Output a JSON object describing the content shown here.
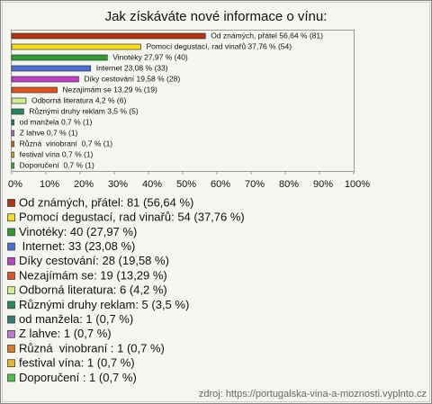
{
  "chart_data": {
    "type": "bar",
    "orientation": "horizontal",
    "title": "Jak získáváte nové informace o vínu:",
    "values": [
      56.64,
      37.76,
      27.97,
      23.08,
      19.58,
      13.29,
      4.2,
      3.5,
      0.7,
      0.7,
      0.7,
      0.7,
      0.7
    ],
    "value_labels": [
      "Od známých, přátel 56,64 % (81)",
      "Pomocí degustací, rad vinařů 37,76 % (54)",
      "Vinotéky 27,97 % (40)",
      "Internet 23,08 % (33)",
      "Díky cestování 19,58 % (28)",
      "Nezajímám se 13,29 % (19)",
      "Odborná literatura 4,2 % (6)",
      "Různými druhy reklam 3,5 % (5)",
      "od manžela 0,7 % (1)",
      "Z lahve 0,7 % (1)",
      "Různá  vinobraní  0,7 % (1)",
      "festival vína 0,7 % (1)",
      "Doporučení  0,7 % (1)"
    ],
    "legend": [
      "Od známých, přátel: 81 (56,64 %)",
      "Pomocí degustací, rad vinařů: 54 (37,76 %)",
      "Vinotéky: 40 (27,97 %)",
      " Internet: 33 (23,08 %)",
      "Díky cestování: 28 (19,58 %)",
      "Nezajímám se: 19 (13,29 %)",
      "Odborná literatura: 6 (4,2 %)",
      "Různými druhy reklam: 5 (3,5 %)",
      "od manžela: 1 (0,7 %)",
      "Z lahve: 1 (0,7 %)",
      "Různá  vinobraní : 1 (0,7 %)",
      "festival vína: 1 (0,7 %)",
      "Doporučení : 1 (0,7 %)"
    ],
    "colors": [
      "#b8300e",
      "#f6dc1a",
      "#2e9c2e",
      "#4c6cdc",
      "#c040cc",
      "#e2501c",
      "#caf28a",
      "#1e8c5c",
      "#2c7c7c",
      "#c274d4",
      "#e07a22",
      "#e8b428",
      "#44c444"
    ],
    "xlim": [
      0,
      100
    ],
    "xticks": [
      {
        "value": 0,
        "label": "0%"
      },
      {
        "value": 10,
        "label": "10%"
      },
      {
        "value": 20,
        "label": "20%"
      },
      {
        "value": 30,
        "label": "30%"
      },
      {
        "value": 40,
        "label": "40%"
      },
      {
        "value": 50,
        "label": "50%"
      },
      {
        "value": 60,
        "label": "60%"
      },
      {
        "value": 70,
        "label": "70%"
      },
      {
        "value": 80,
        "label": "80%"
      },
      {
        "value": 90,
        "label": "90%"
      },
      {
        "value": 100,
        "label": "100%"
      }
    ],
    "source": "zdroj: https://portugalska-vina-a-moznosti.vyplnto.cz"
  }
}
